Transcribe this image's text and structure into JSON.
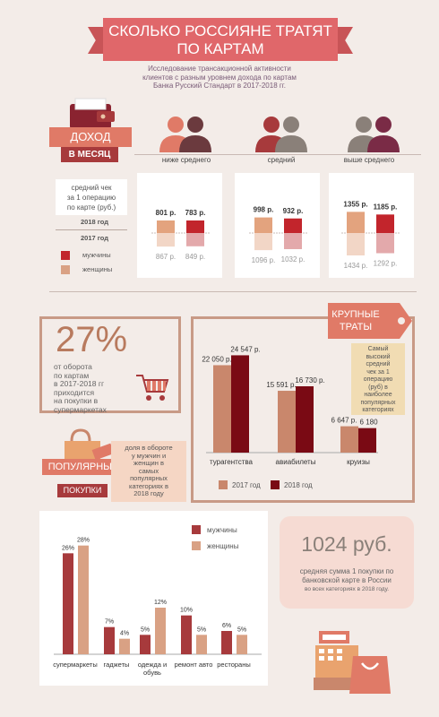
{
  "header": {
    "title_line1": "СКОЛЬКО РОССИЯНЕ ТРАТЯТ",
    "title_line2": "ПО КАРТАМ",
    "subtitle_line1": "Исследование трансакционной активности",
    "subtitle_line2": "клиентов с разным уровнем дохода по картам",
    "subtitle_line3": "Банка Русский Стандарт в 2017-2018 гг."
  },
  "income": {
    "tag_line1": "ДОХОД",
    "tag_line2": "В МЕСЯЦ",
    "groups": [
      "ниже среднего",
      "средний",
      "выше среднего"
    ]
  },
  "avg_check": {
    "label_line1": "средний чек",
    "label_line2": "за 1 операцию",
    "label_line3": "по карте (руб.)",
    "year_2018": "2018 год",
    "year_2017": "2017 год",
    "men": "мужчины",
    "women": "женщины",
    "values_2018_text": [
      "801 р.",
      "783 р.",
      "998 р.",
      "932 р.",
      "1355 р.",
      "1185 р."
    ],
    "values_2017_text": [
      "867 р.",
      "849 р.",
      "1096 р.",
      "1032 р.",
      "1434 р.",
      "1292 р."
    ]
  },
  "supermarket": {
    "percent": "27%",
    "line1": "от оборота",
    "line2": "по картам",
    "line3": "в 2017-2018 гг",
    "line4": "приходится",
    "line5": "на покупки в",
    "line6": "супермаркетах"
  },
  "big_spend": {
    "tag_line1": "КРУПНЫЕ",
    "tag_line2": "ТРАТЫ",
    "note": [
      "Самый",
      "высокий",
      "средний",
      "чек за 1",
      "операцию",
      "(руб) в",
      "наиболее",
      "популярных",
      "категориях"
    ],
    "legend_2017": "2017 год",
    "legend_2018": "2018 год"
  },
  "popular": {
    "tag_line1": "ПОПУЛЯРНЫЕ",
    "tag_line2": "ПОКУПКИ",
    "note": [
      "доля в обороте",
      "у мужчин и",
      "женщин в",
      "самых",
      "популярных",
      "категориях в",
      "2018 году"
    ]
  },
  "summary": {
    "amount": "1024 руб.",
    "line1": "средняя сумма 1 покупки по",
    "line2": "банковской карте в России",
    "line3": "во всех категориях  в 2018 году."
  },
  "colors": {
    "accent": "#e07a67",
    "men": "#a73a3c",
    "women": "#d9a184",
    "dark": "#7a0a14",
    "tan": "#c9876c"
  },
  "chart_data": [
    {
      "type": "bar",
      "title": "средний чек за 1 операцию по карте (руб.)",
      "categories": [
        "ниже среднего",
        "средний",
        "выше среднего"
      ],
      "series": [
        {
          "name": "мужчины 2018",
          "values": [
            801,
            998,
            1355
          ]
        },
        {
          "name": "женщины 2018",
          "values": [
            783,
            932,
            1185
          ]
        },
        {
          "name": "мужчины 2017",
          "values": [
            867,
            1096,
            1434
          ]
        },
        {
          "name": "женщины 2017",
          "values": [
            849,
            1032,
            1292
          ]
        }
      ]
    },
    {
      "type": "bar",
      "categories": [
        "турагентства",
        "авиабилеты",
        "круизы"
      ],
      "series": [
        {
          "name": "2017 год",
          "values": [
            22050,
            15591,
            6647
          ],
          "labels": [
            "22 050 р.",
            "15 591 р.",
            "6 647 р."
          ]
        },
        {
          "name": "2018 год",
          "values": [
            24547,
            16730,
            6180
          ],
          "labels": [
            "24 547 р.",
            "16 730 р.",
            "6 180 р."
          ]
        }
      ],
      "ylim": [
        0,
        26000
      ]
    },
    {
      "type": "bar",
      "categories": [
        "супермаркеты",
        "гаджеты",
        "одежда и обувь",
        "ремонт авто",
        "рестораны"
      ],
      "category_lines": [
        [
          "супермаркеты"
        ],
        [
          "гаджеты"
        ],
        [
          "одежда и",
          "обувь"
        ],
        [
          "ремонт авто"
        ],
        [
          "рестораны"
        ]
      ],
      "series": [
        {
          "name": "мужчины",
          "values": [
            26,
            7,
            5,
            10,
            6
          ],
          "labels": [
            "26%",
            "7%",
            "5%",
            "10%",
            "6%"
          ]
        },
        {
          "name": "женщины",
          "values": [
            28,
            4,
            12,
            5,
            5
          ],
          "labels": [
            "28%",
            "4%",
            "12%",
            "5%",
            "5%"
          ]
        }
      ],
      "ylim": [
        0,
        30
      ]
    }
  ]
}
